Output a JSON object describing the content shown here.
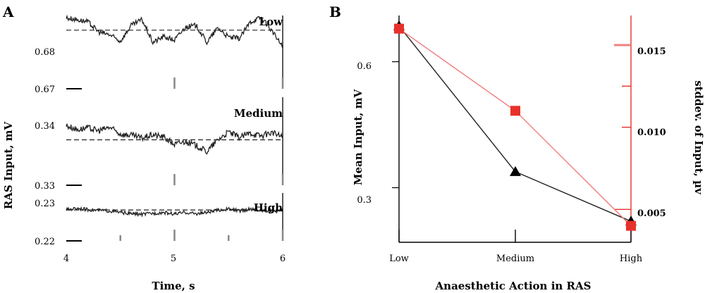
{
  "colors": {
    "trace": "#222222",
    "axis": "#000000",
    "tick_gray": "#888888",
    "red": "#e8312b",
    "red_line": "#f07c7c",
    "pink_tick": "#f08080"
  },
  "panel_a": {
    "panel_label": "A",
    "ylabel": "RAS Input, mV",
    "xlabel": "Time, s",
    "xticks": [
      "4",
      "5",
      "6"
    ]
  },
  "panel_b": {
    "panel_label": "B",
    "ylabel_left": "Mean Input, mV",
    "ylabel_right": "stddev. of Input, µv",
    "xlabel": "Anaesthetic Action in RAS",
    "categories": [
      "Low",
      "Medium",
      "High"
    ],
    "left_ticks": [
      "0.6",
      "0.3"
    ],
    "right_ticks": [
      "0.015",
      "0.010",
      "0.005"
    ]
  },
  "chart_data": [
    {
      "type": "line",
      "panel": "A-Low",
      "label": "Low",
      "xlabel": "Time, s",
      "ylabel": "RAS Input, mV",
      "xlim": [
        4,
        6
      ],
      "ylim": [
        0.67,
        0.6825
      ],
      "yticks": [
        "0.68",
        "0.67"
      ],
      "mean": 0.68,
      "x": [
        4.0,
        4.1,
        4.2,
        4.3,
        4.4,
        4.5,
        4.6,
        4.7,
        4.8,
        4.9,
        5.0,
        5.1,
        5.2,
        5.3,
        5.4,
        5.5,
        5.6,
        5.7,
        5.8,
        5.9,
        6.0
      ],
      "y": [
        0.6821,
        0.6818,
        0.6814,
        0.6797,
        0.6792,
        0.6781,
        0.6808,
        0.6818,
        0.6779,
        0.6789,
        0.6783,
        0.6805,
        0.6808,
        0.6779,
        0.6804,
        0.6788,
        0.6786,
        0.6814,
        0.6822,
        0.6799,
        0.6771
      ]
    },
    {
      "type": "line",
      "panel": "A-Medium",
      "label": "Medium",
      "xlabel": "Time, s",
      "ylabel": "RAS Input, mV",
      "xlim": [
        4,
        6
      ],
      "ylim": [
        0.33,
        0.3455
      ],
      "yticks": [
        "0.34",
        "0.33"
      ],
      "mean": 0.338,
      "x": [
        4.0,
        4.1,
        4.2,
        4.3,
        4.4,
        4.5,
        4.6,
        4.7,
        4.8,
        4.9,
        5.0,
        5.1,
        5.2,
        5.3,
        5.4,
        5.5,
        5.6,
        5.7,
        5.8,
        5.9,
        6.0
      ],
      "y": [
        0.3405,
        0.3398,
        0.3401,
        0.3396,
        0.3402,
        0.339,
        0.3388,
        0.3383,
        0.3389,
        0.3385,
        0.3372,
        0.3377,
        0.337,
        0.3359,
        0.338,
        0.3394,
        0.3384,
        0.3392,
        0.3387,
        0.3393,
        0.3385
      ]
    },
    {
      "type": "line",
      "panel": "A-High",
      "label": "High",
      "xlabel": "Time, s",
      "ylabel": "RAS Input, mV",
      "xlim": [
        4,
        6
      ],
      "ylim": [
        0.22,
        0.2355
      ],
      "yticks": [
        "0.23",
        "0.22"
      ],
      "mean": 0.23,
      "x": [
        4.0,
        4.1,
        4.2,
        4.3,
        4.4,
        4.5,
        4.6,
        4.7,
        4.8,
        4.9,
        5.0,
        5.1,
        5.2,
        5.3,
        5.4,
        5.5,
        5.6,
        5.7,
        5.8,
        5.9,
        6.0
      ],
      "y": [
        0.2301,
        0.2306,
        0.2301,
        0.2299,
        0.2297,
        0.2292,
        0.2288,
        0.2286,
        0.2289,
        0.2292,
        0.2287,
        0.2292,
        0.2288,
        0.2292,
        0.2299,
        0.2303,
        0.2297,
        0.2303,
        0.2299,
        0.2296,
        0.2297
      ]
    },
    {
      "type": "line",
      "panel": "B",
      "xlabel": "Anaesthetic Action in RAS",
      "ylabel": "Mean Input, mV",
      "ylabel_right": "stddev. of Input, µv",
      "categories": [
        "Low",
        "Medium",
        "High"
      ],
      "ylim": [
        0.17,
        0.71
      ],
      "ylim_right": [
        0.003,
        0.0168
      ],
      "series": [
        {
          "axis": "left",
          "marker": "triangle",
          "color": "#000000",
          "values": [
            0.685,
            0.338,
            0.22
          ]
        },
        {
          "axis": "right",
          "marker": "square",
          "color": "#e8312b",
          "values": [
            0.016,
            0.011,
            0.004
          ]
        }
      ]
    }
  ]
}
